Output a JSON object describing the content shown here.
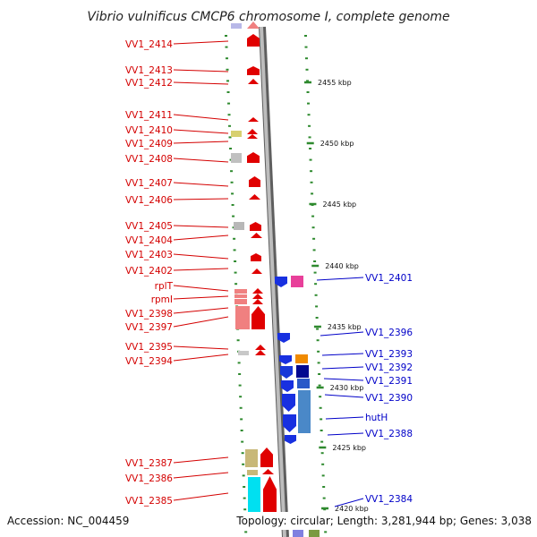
{
  "title": "Vibrio vulnificus CMCP6 chromosome I, complete genome",
  "footer": {
    "accession": "Accession: NC_004459",
    "topology": "Topology: circular; Length: 3,281,944 bp; Genes: 3,038"
  },
  "colors": {
    "left_label": "#d40000",
    "right_label": "#0000c8",
    "backbone": "#8f8f8f",
    "tick": "#2f8a2f"
  },
  "scale": [
    {
      "text": "2455 kbp",
      "kbp": 2455
    },
    {
      "text": "2450 kbp",
      "kbp": 2450
    },
    {
      "text": "2445 kbp",
      "kbp": 2445
    },
    {
      "text": "2440 kbp",
      "kbp": 2440
    },
    {
      "text": "2435 kbp",
      "kbp": 2435
    },
    {
      "text": "2430 kbp",
      "kbp": 2430
    },
    {
      "text": "2425 kbp",
      "kbp": 2425
    },
    {
      "text": "2420 kbp",
      "kbp": 2420
    }
  ],
  "left_labels": [
    "VV1_2414",
    "VV1_2413",
    "VV1_2412",
    "VV1_2411",
    "VV1_2410",
    "VV1_2409",
    "VV1_2408",
    "VV1_2407",
    "VV1_2406",
    "VV1_2405",
    "VV1_2404",
    "VV1_2403",
    "VV1_2402",
    "rplT",
    "rpmI",
    "VV1_2398",
    "VV1_2397",
    "VV1_2395",
    "VV1_2394",
    "VV1_2387",
    "VV1_2386",
    "VV1_2385"
  ],
  "right_labels": [
    "VV1_2401",
    "VV1_2396",
    "VV1_2393",
    "VV1_2392",
    "VV1_2391",
    "VV1_2390",
    "hutH",
    "VV1_2388",
    "VV1_2384"
  ]
}
